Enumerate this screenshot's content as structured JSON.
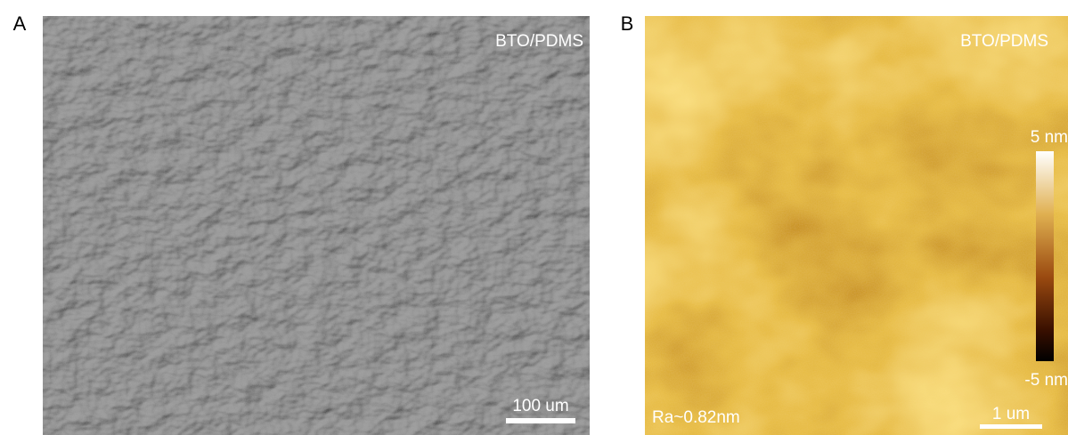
{
  "panels": [
    {
      "label": "A",
      "title": "BTO/PDMS",
      "scale_bar": "100 um"
    },
    {
      "label": "B",
      "title": "BTO/PDMS",
      "annotation": "Ra~0.82nm",
      "scale_bar": "1 um",
      "colorbar": {
        "max_label": "5 nm",
        "min_label": "-5 nm"
      }
    }
  ]
}
